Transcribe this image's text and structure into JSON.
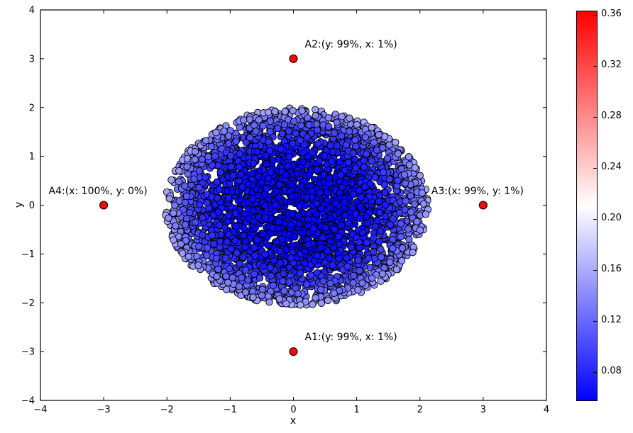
{
  "figure": {
    "background": "#ffffff",
    "frame_color": "#000000"
  },
  "chart_data": {
    "type": "scatter",
    "title": "",
    "xlabel": "x",
    "ylabel": "y",
    "xlim": [
      -4,
      4
    ],
    "ylim": [
      -4,
      4
    ],
    "xticks": [
      -4,
      -3,
      -2,
      -1,
      0,
      1,
      2,
      3,
      4
    ],
    "yticks": [
      -4,
      -3,
      -2,
      -1,
      0,
      1,
      2,
      3,
      4
    ],
    "grid": false,
    "legend": null,
    "cluster": {
      "description": "Dense blob of ~3500 overlapping circular markers uniformly filling a disc centered near the origin, radius about 2; marker color encodes a score from deep blue (~0.06) at the core to light periwinkle blue (~0.155) at the rim; black marker edges",
      "n_points": 3500,
      "center": [
        0.05,
        -0.03
      ],
      "radius_x": 2.08,
      "radius_y": 2.02,
      "value_range": [
        0.06,
        0.155
      ],
      "marker_edge_color": "#000000",
      "seed": 1337
    },
    "anomalies": [
      {
        "id": "A1",
        "x": 0,
        "y": -3,
        "value": 0.36,
        "label": "A1:(y: 99%, x: 1%)",
        "align": "left"
      },
      {
        "id": "A2",
        "x": 0,
        "y": 3,
        "value": 0.36,
        "label": "A2:(y: 99%, x: 1%)",
        "align": "left"
      },
      {
        "id": "A3",
        "x": 3,
        "y": 0,
        "value": 0.36,
        "label": "A3:(x: 99%, y: 1%)",
        "align": "center"
      },
      {
        "id": "A4",
        "x": -3,
        "y": 0,
        "value": 0.36,
        "label": "A4:(x: 100%, y: 0%)",
        "align": "center"
      }
    ],
    "colorbar": {
      "colormap": "bwr",
      "vmin": 0.058,
      "vmax": 0.363,
      "ticks": [
        0.36,
        0.32,
        0.28,
        0.24,
        0.2,
        0.16,
        0.12,
        0.08
      ],
      "tick_labels": [
        "0.36",
        "0.32",
        "0.28",
        "0.24",
        "0.20",
        "0.16",
        "0.12",
        "0.08"
      ],
      "top_color": "#ff0000",
      "mid_color": "#ffffff",
      "bottom_color": "#0000ff"
    }
  }
}
